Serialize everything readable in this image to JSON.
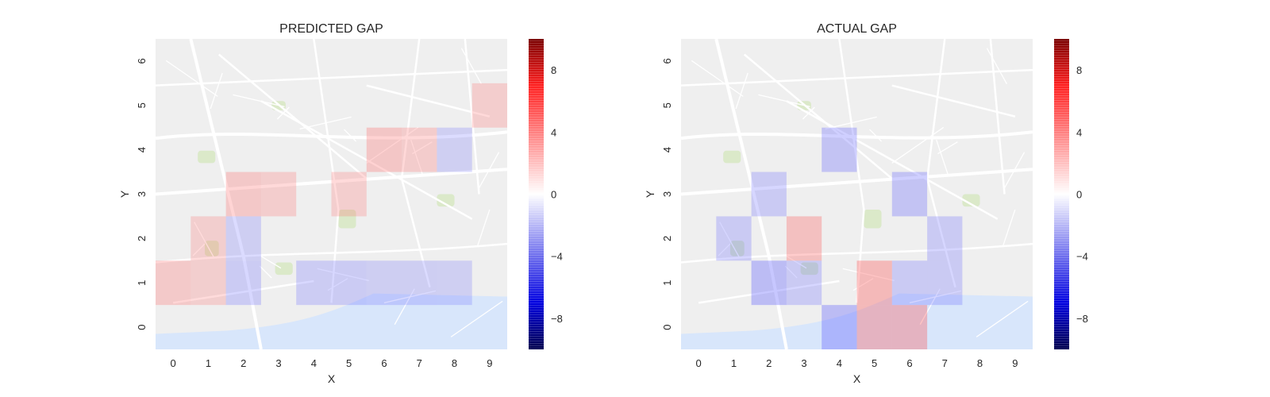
{
  "colors": {
    "map_bg": "#efefef",
    "water": "#d8e6fb",
    "park": "#d8e8c4",
    "street": "#ffffff",
    "cmap_low": "#00008c",
    "cmap_mid": "#ffffff",
    "cmap_high": "#960000"
  },
  "chart_data": [
    {
      "type": "heatmap",
      "title": "PREDICTED GAP",
      "xlabel": "X",
      "ylabel": "Y",
      "x_ticks": [
        "0",
        "1",
        "2",
        "3",
        "4",
        "5",
        "6",
        "7",
        "8",
        "9"
      ],
      "y_ticks": [
        "0",
        "1",
        "2",
        "3",
        "4",
        "5",
        "6"
      ],
      "xlim": [
        -0.5,
        9.5
      ],
      "ylim": [
        -0.5,
        6.5
      ],
      "grid": false,
      "background": "street map",
      "colorbar": {
        "ticks": [
          -8,
          -4,
          0,
          4,
          8
        ],
        "tick_labels": [
          "−8",
          "−4",
          "0",
          "4",
          "8"
        ],
        "range": [
          -10,
          10
        ],
        "colormap": "seismic"
      },
      "cells": [
        {
          "x": 0,
          "y": 1,
          "value": 0.8
        },
        {
          "x": 1,
          "y": 1,
          "value": 0.3
        },
        {
          "x": 1,
          "y": 2,
          "value": 0.3
        },
        {
          "x": 2,
          "y": 1,
          "value": -0.9
        },
        {
          "x": 2,
          "y": 2,
          "value": -0.6
        },
        {
          "x": 2,
          "y": 3,
          "value": 0.9
        },
        {
          "x": 3,
          "y": 3,
          "value": 0.5
        },
        {
          "x": 4,
          "y": 1,
          "value": -0.8
        },
        {
          "x": 5,
          "y": 1,
          "value": -0.9
        },
        {
          "x": 5,
          "y": 3,
          "value": 0.4
        },
        {
          "x": 6,
          "y": 1,
          "value": -0.6
        },
        {
          "x": 6,
          "y": 4,
          "value": 1.0
        },
        {
          "x": 7,
          "y": 1,
          "value": -0.6
        },
        {
          "x": 7,
          "y": 4,
          "value": 0.6
        },
        {
          "x": 8,
          "y": 1,
          "value": -0.5
        },
        {
          "x": 8,
          "y": 4,
          "value": -0.5
        },
        {
          "x": 9,
          "y": 5,
          "value": 0.5
        }
      ]
    },
    {
      "type": "heatmap",
      "title": "ACTUAL GAP",
      "xlabel": "X",
      "ylabel": "Y",
      "x_ticks": [
        "0",
        "1",
        "2",
        "3",
        "4",
        "5",
        "6",
        "7",
        "8",
        "9"
      ],
      "y_ticks": [
        "0",
        "1",
        "2",
        "3",
        "4",
        "5",
        "6"
      ],
      "xlim": [
        -0.5,
        9.5
      ],
      "ylim": [
        -0.5,
        6.5
      ],
      "grid": false,
      "background": "street map",
      "colorbar": {
        "ticks": [
          -8,
          -4,
          0,
          4,
          8
        ],
        "tick_labels": [
          "−8",
          "−4",
          "0",
          "4",
          "8"
        ],
        "range": [
          -10,
          10
        ],
        "colormap": "seismic"
      },
      "cells": [
        {
          "x": 1,
          "y": 2,
          "value": -1.0
        },
        {
          "x": 2,
          "y": 1,
          "value": -2.0
        },
        {
          "x": 2,
          "y": 3,
          "value": -1.0
        },
        {
          "x": 3,
          "y": 1,
          "value": -1.0
        },
        {
          "x": 3,
          "y": 2,
          "value": 1.5
        },
        {
          "x": 4,
          "y": 0,
          "value": -2.0
        },
        {
          "x": 4,
          "y": 4,
          "value": -1.5
        },
        {
          "x": 5,
          "y": 0,
          "value": 2.0
        },
        {
          "x": 5,
          "y": 1,
          "value": 2.0
        },
        {
          "x": 6,
          "y": 0,
          "value": 2.0
        },
        {
          "x": 6,
          "y": 1,
          "value": -1.0
        },
        {
          "x": 6,
          "y": 3,
          "value": -1.5
        },
        {
          "x": 7,
          "y": 1,
          "value": -1.0
        },
        {
          "x": 7,
          "y": 2,
          "value": -1.0
        }
      ]
    }
  ]
}
